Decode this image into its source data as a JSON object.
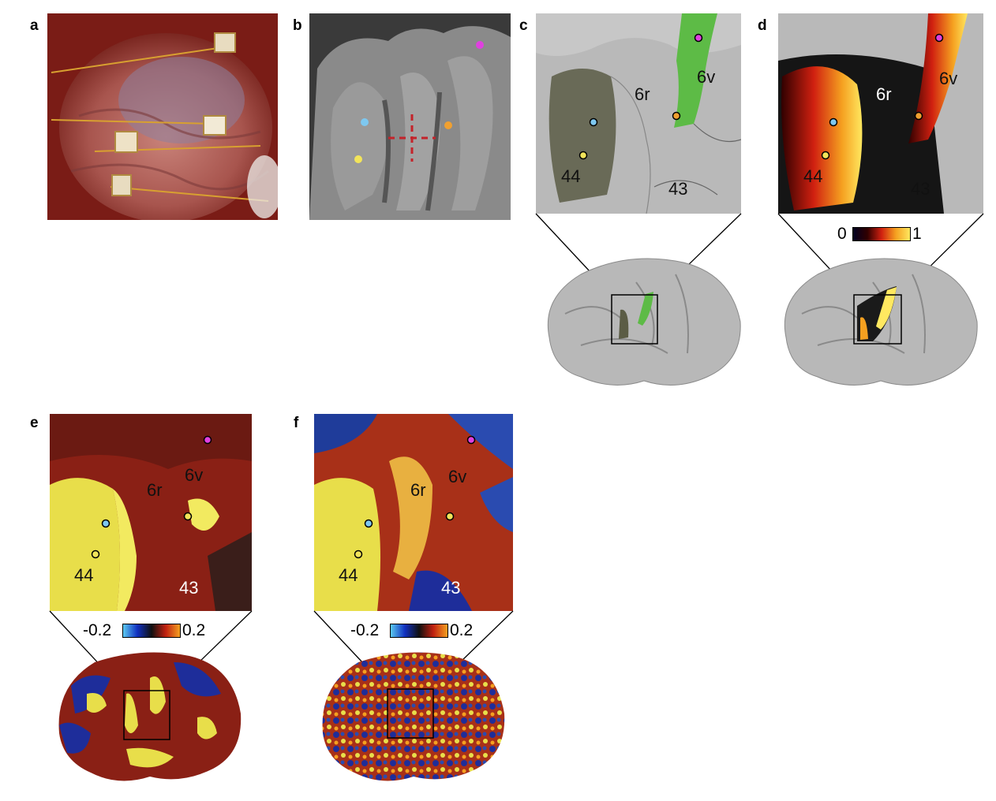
{
  "panel_labels": {
    "a": "a",
    "b": "b",
    "c": "c",
    "d": "d",
    "e": "e",
    "f": "f"
  },
  "regions": {
    "r44": "44",
    "r6r": "6r",
    "r6v": "6v",
    "r43": "43"
  },
  "colorbars": {
    "d": {
      "min": "0",
      "max": "1"
    },
    "e": {
      "min": "-0.2",
      "max": "0.2"
    },
    "f": {
      "min": "-0.2",
      "max": "0.2"
    }
  },
  "colors": {
    "electrode_cyan": "#7ec8f0",
    "electrode_yellow": "#f2e45a",
    "electrode_orange": "#f0a030",
    "electrode_magenta": "#e040e0",
    "area44_fill": "#5b5c45",
    "area6v_fill": "#5dbb46",
    "surface_gray": "#b8b8b8"
  }
}
